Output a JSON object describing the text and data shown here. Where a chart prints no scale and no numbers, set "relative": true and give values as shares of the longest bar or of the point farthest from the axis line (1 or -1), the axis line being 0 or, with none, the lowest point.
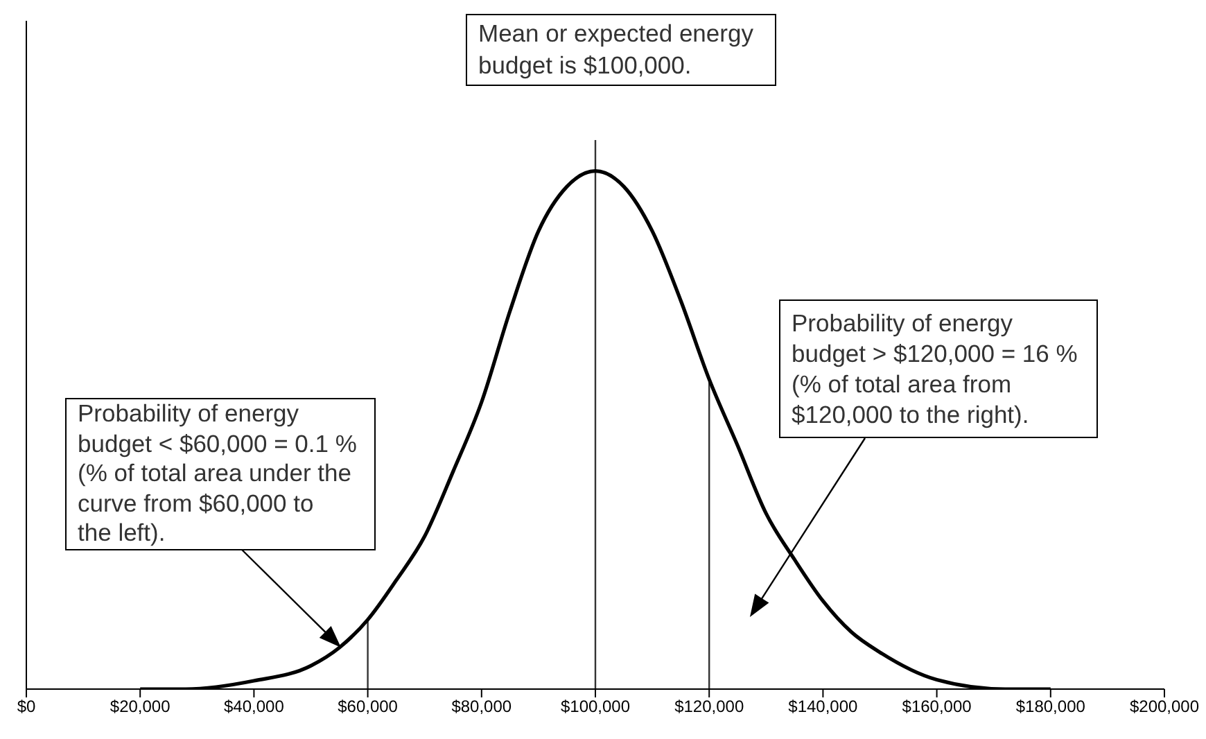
{
  "chart_data": {
    "type": "line",
    "relative": true,
    "x": [
      20000,
      28000,
      40000,
      50000,
      55000,
      60000,
      65000,
      70000,
      75000,
      80000,
      85000,
      90000,
      95000,
      100000,
      105000,
      110000,
      115000,
      120000,
      125000,
      130000,
      135000,
      140000,
      145000,
      150000,
      160000,
      172000,
      180000
    ],
    "series": [
      {
        "color": "#000000",
        "values": [
          0,
          0,
          0.016,
          0.045,
          0.08,
          0.134,
          0.21,
          0.295,
          0.42,
          0.554,
          0.73,
          0.884,
          0.97,
          1,
          0.97,
          0.884,
          0.75,
          0.598,
          0.47,
          0.339,
          0.25,
          0.17,
          0.11,
          0.071,
          0.018,
          0,
          0
        ]
      }
    ],
    "xlim": [
      0,
      200000
    ],
    "xticks": [
      {
        "value": 0,
        "label": "$0"
      },
      {
        "value": 20000,
        "label": "$20,000"
      },
      {
        "value": 40000,
        "label": "$40,000"
      },
      {
        "value": 60000,
        "label": "$60,000"
      },
      {
        "value": 80000,
        "label": "$80,000"
      },
      {
        "value": 100000,
        "label": "$100,000"
      },
      {
        "value": 120000,
        "label": "$120,000"
      },
      {
        "value": 140000,
        "label": "$140,000"
      },
      {
        "value": 160000,
        "label": "$160,000"
      },
      {
        "value": 180000,
        "label": "$180,000"
      },
      {
        "value": 200000,
        "label": "$200,000"
      }
    ],
    "ref_lines": [
      {
        "axis": "x",
        "value": 60000,
        "color": "#333333"
      },
      {
        "axis": "x",
        "value": 100000,
        "color": "#333333"
      },
      {
        "axis": "x",
        "value": 120000,
        "color": "#333333"
      }
    ],
    "annotations": [
      "Mean or expected energy\nbudget is $100,000.",
      "Probability of energy\nbudget < $60,000 = 0.1 %\n(% of total area under the\ncurve from $60,000 to\nthe left).",
      "Probability of energy\nbudget > $120,000 = 16 %\n(% of total area from\n$120,000 to the right)."
    ]
  }
}
